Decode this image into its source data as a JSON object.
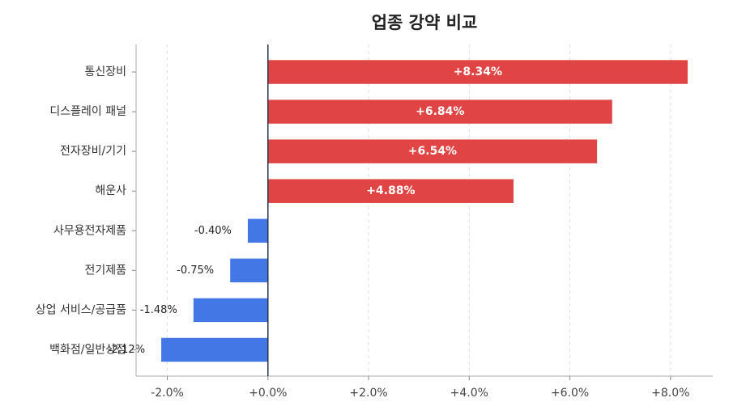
{
  "chart_data": {
    "type": "bar",
    "orientation": "horizontal",
    "title": "업종 강약 비교",
    "categories": [
      "통신장비",
      "디스플레이 패널",
      "전자장비/기기",
      "해운사",
      "사무용전자제품",
      "전기제품",
      "상업 서비스/공급품",
      "백화점/일반상점"
    ],
    "values": [
      8.34,
      6.84,
      6.54,
      4.88,
      -0.4,
      -0.75,
      -1.48,
      -2.12
    ],
    "value_labels": [
      "+8.34%",
      "+6.84%",
      "+6.54%",
      "+4.88%",
      "-0.40%",
      "-0.75%",
      "-1.48%",
      "-2.12%"
    ],
    "positive_color": "#e04444",
    "negative_color": "#4477e6",
    "xlim": [
      -2.62,
      8.84
    ],
    "xticks": [
      {
        "value": -2,
        "label": "-2.0%"
      },
      {
        "value": 0,
        "label": "+0.0%"
      },
      {
        "value": 2,
        "label": "+2.0%"
      },
      {
        "value": 4,
        "label": "+4.0%"
      },
      {
        "value": 6,
        "label": "+6.0%"
      },
      {
        "value": 8,
        "label": "+8.0%"
      }
    ],
    "grid": true
  }
}
